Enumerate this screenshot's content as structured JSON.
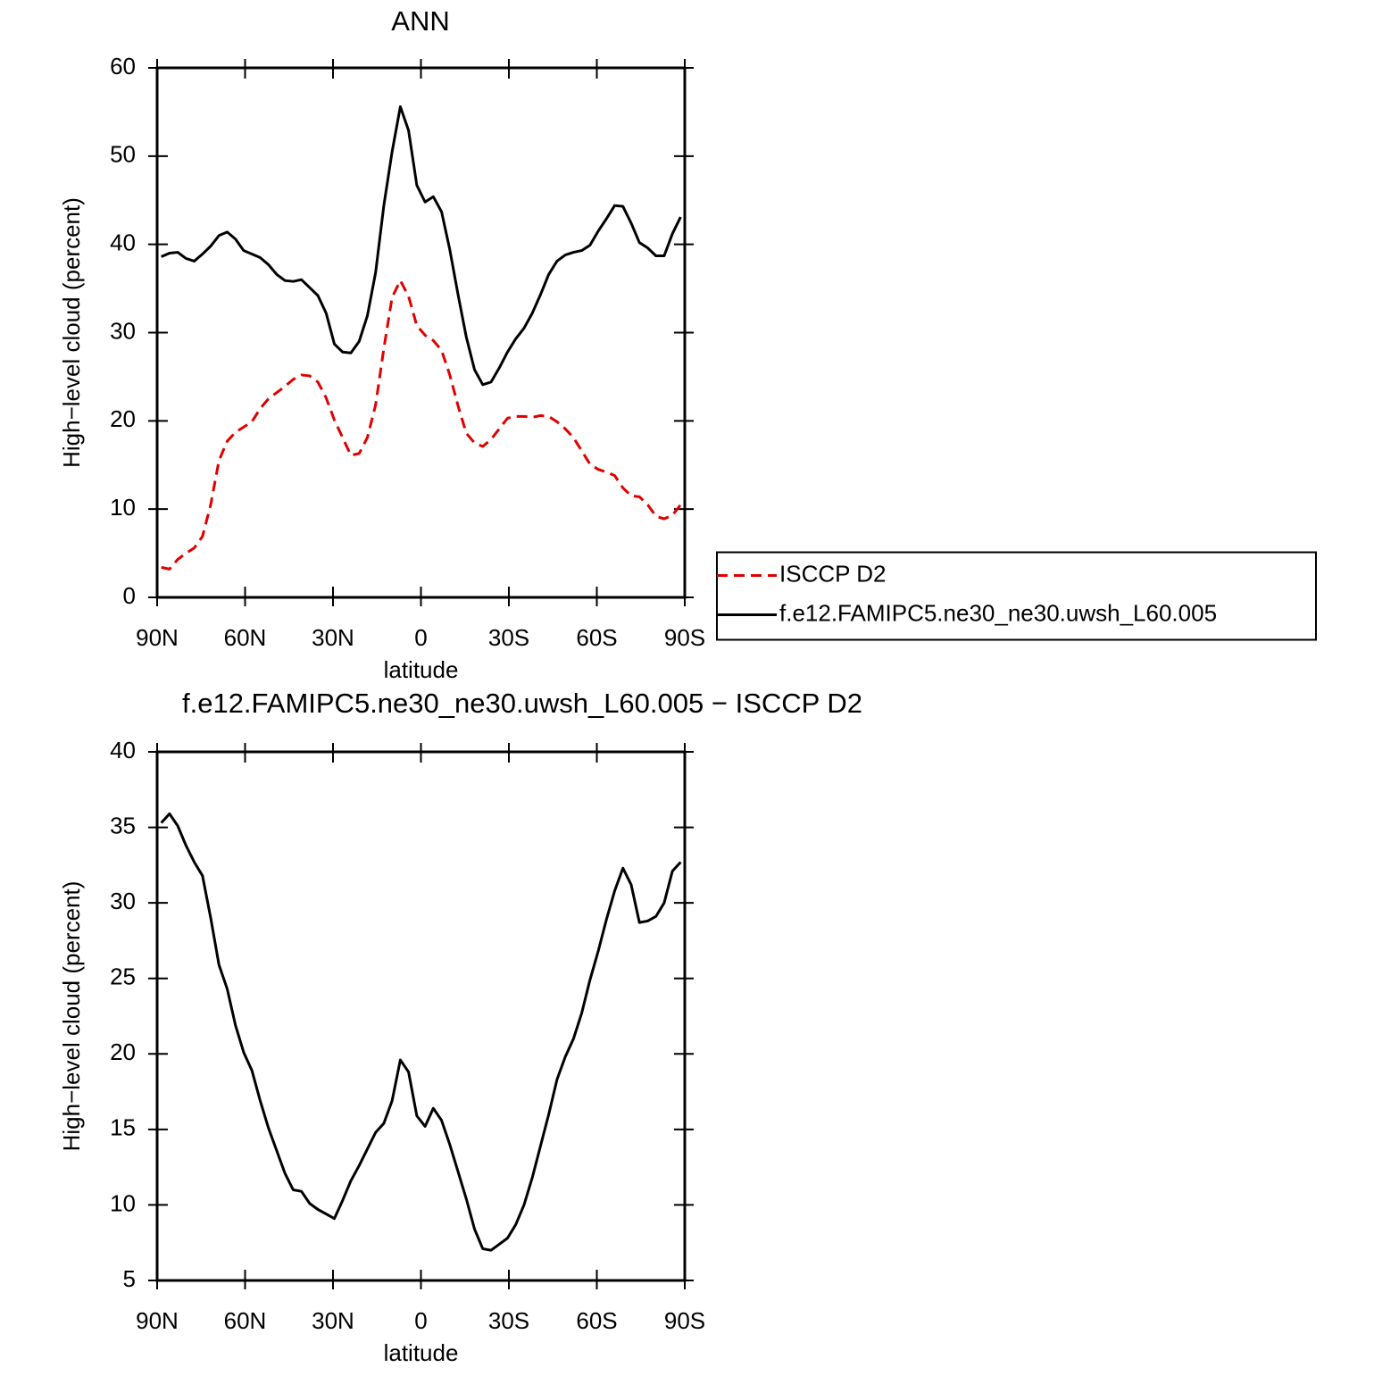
{
  "chart_data": [
    {
      "type": "line",
      "title": "ANN",
      "xlabel": "latitude",
      "ylabel": "High−level cloud (percent)",
      "x": [
        88.59,
        85.78,
        82.97,
        80.16,
        77.34,
        74.53,
        71.72,
        68.91,
        66.09,
        63.28,
        60.47,
        57.66,
        54.84,
        52.03,
        49.22,
        46.41,
        43.59,
        40.78,
        37.97,
        35.16,
        32.34,
        29.53,
        26.72,
        23.91,
        21.09,
        18.28,
        15.47,
        12.66,
        9.84,
        7.03,
        4.22,
        1.41,
        -1.41,
        -4.22,
        -7.03,
        -9.84,
        -12.66,
        -15.47,
        -18.28,
        -21.09,
        -23.91,
        -26.72,
        -29.53,
        -32.34,
        -35.16,
        -37.97,
        -40.78,
        -43.59,
        -46.41,
        -49.22,
        -52.03,
        -54.84,
        -57.66,
        -60.47,
        -63.28,
        -66.09,
        -68.91,
        -71.72,
        -74.53,
        -77.34,
        -80.16,
        -82.97,
        -85.78,
        -88.59
      ],
      "series": [
        {
          "name": "ISCCP D2",
          "color": "#e00000",
          "dashed": true,
          "values": [
            3.4,
            3.2,
            4.3,
            5.0,
            5.6,
            6.9,
            10.5,
            15.5,
            17.7,
            18.7,
            19.3,
            19.9,
            21.4,
            22.5,
            23.2,
            23.9,
            24.7,
            25.2,
            25.1,
            24.4,
            22.6,
            20.1,
            18.1,
            16.1,
            16.3,
            18.1,
            21.8,
            28.2,
            34.0,
            35.9,
            34.1,
            30.8,
            29.7,
            29.1,
            28.0,
            25.2,
            21.7,
            18.6,
            17.5,
            17.1,
            17.9,
            19.1,
            20.3,
            20.5,
            20.5,
            20.4,
            20.6,
            20.5,
            19.9,
            19.1,
            18.1,
            16.6,
            15.1,
            14.5,
            14.2,
            13.8,
            12.4,
            11.5,
            11.4,
            10.5,
            9.2,
            8.9,
            9.3,
            10.5
          ]
        },
        {
          "name": "f.e12.FAMIPC5.ne30_ne30.uwsh_L60.005",
          "color": "#000000",
          "dashed": false,
          "values": [
            38.6,
            39.0,
            39.1,
            38.4,
            38.1,
            38.9,
            39.8,
            41.0,
            41.4,
            40.6,
            39.3,
            38.9,
            38.5,
            37.7,
            36.6,
            35.9,
            35.8,
            36.0,
            35.1,
            34.2,
            32.2,
            28.7,
            27.8,
            27.7,
            29.0,
            31.9,
            36.8,
            44.4,
            50.5,
            55.6,
            52.9,
            46.7,
            44.8,
            45.4,
            43.7,
            39.4,
            34.3,
            29.5,
            25.8,
            24.1,
            24.4,
            26.0,
            27.8,
            29.3,
            30.5,
            32.2,
            34.3,
            36.6,
            38.1,
            38.8,
            39.1,
            39.3,
            39.9,
            41.5,
            42.9,
            44.4,
            44.3,
            42.4,
            40.2,
            39.6,
            38.7,
            38.7,
            41.2,
            43.1
          ]
        }
      ],
      "xlim": [
        90,
        -90
      ],
      "xticks": [
        {
          "value": 90,
          "label": "90N"
        },
        {
          "value": 60,
          "label": "60N"
        },
        {
          "value": 30,
          "label": "30N"
        },
        0,
        {
          "value": -30,
          "label": "30S"
        },
        {
          "value": -60,
          "label": "60S"
        },
        {
          "value": -90,
          "label": "90S"
        }
      ],
      "ylim": [
        0,
        60
      ],
      "yticks": [
        0,
        10,
        20,
        30,
        40,
        50,
        60
      ],
      "grid": false,
      "legend": "right"
    },
    {
      "type": "line",
      "title": "f.e12.FAMIPC5.ne30_ne30.uwsh_L60.005 − ISCCP D2",
      "xlabel": "latitude",
      "ylabel": "High−level cloud (percent)",
      "x": [
        88.59,
        85.78,
        82.97,
        80.16,
        77.34,
        74.53,
        71.72,
        68.91,
        66.09,
        63.28,
        60.47,
        57.66,
        54.84,
        52.03,
        49.22,
        46.41,
        43.59,
        40.78,
        37.97,
        35.16,
        32.34,
        29.53,
        26.72,
        23.91,
        21.09,
        18.28,
        15.47,
        12.66,
        9.84,
        7.03,
        4.22,
        1.41,
        -1.41,
        -4.22,
        -7.03,
        -9.84,
        -12.66,
        -15.47,
        -18.28,
        -21.09,
        -23.91,
        -26.72,
        -29.53,
        -32.34,
        -35.16,
        -37.97,
        -40.78,
        -43.59,
        -46.41,
        -49.22,
        -52.03,
        -54.84,
        -57.66,
        -60.47,
        -63.28,
        -66.09,
        -68.91,
        -71.72,
        -74.53,
        -77.34,
        -80.16,
        -82.97,
        -85.78,
        -88.59
      ],
      "values": [
        35.3,
        35.9,
        35.1,
        33.8,
        32.7,
        31.8,
        29.0,
        25.9,
        24.3,
        21.9,
        20.1,
        18.9,
        16.9,
        15.1,
        13.6,
        12.1,
        11.0,
        10.9,
        10.1,
        9.7,
        9.4,
        9.1,
        10.3,
        11.6,
        12.6,
        13.7,
        14.8,
        15.4,
        16.9,
        19.6,
        18.8,
        15.9,
        15.2,
        16.4,
        15.6,
        14.0,
        12.2,
        10.4,
        8.4,
        7.1,
        7.0,
        7.4,
        7.8,
        8.7,
        10.0,
        11.8,
        13.9,
        16.0,
        18.3,
        19.8,
        21.0,
        22.7,
        24.9,
        26.8,
        28.9,
        30.8,
        32.3,
        31.2,
        28.7,
        28.8,
        29.1,
        30.0,
        32.1,
        32.7
      ],
      "color": "#000000",
      "xlim": [
        90,
        -90
      ],
      "xticks": [
        {
          "value": 90,
          "label": "90N"
        },
        {
          "value": 60,
          "label": "60N"
        },
        {
          "value": 30,
          "label": "30N"
        },
        0,
        {
          "value": -30,
          "label": "30S"
        },
        {
          "value": -60,
          "label": "60S"
        },
        {
          "value": -90,
          "label": "90S"
        }
      ],
      "ylim": [
        5,
        40
      ],
      "yticks": [
        5,
        10,
        15,
        20,
        25,
        30,
        35,
        40
      ],
      "grid": false
    }
  ]
}
